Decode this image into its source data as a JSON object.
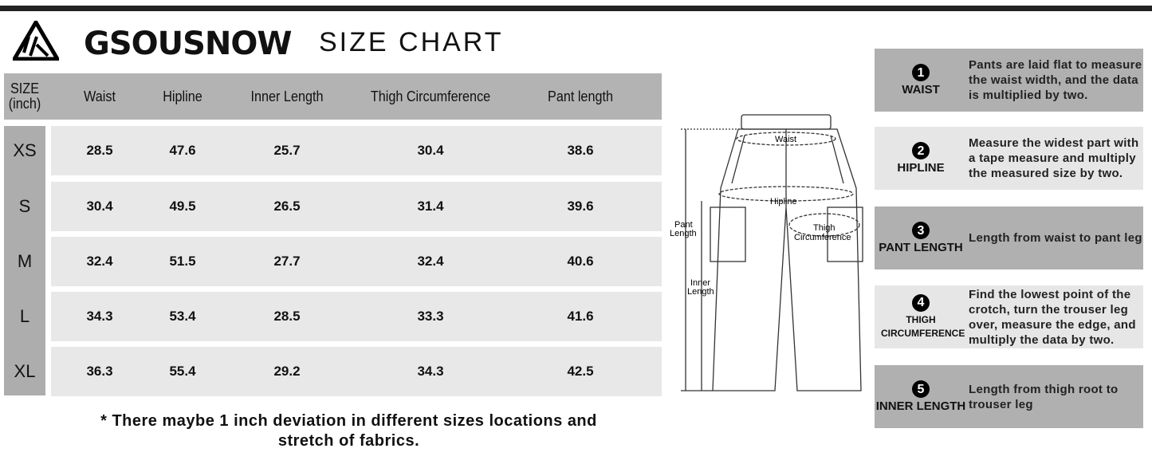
{
  "brand": {
    "name": "GSOUSNOW",
    "title": "SIZE CHART"
  },
  "table": {
    "headers": [
      "SIZE\n(inch)",
      "Waist",
      "Hipline",
      "Inner Length",
      "Thigh Circumference",
      "Pant length"
    ],
    "rows": [
      {
        "size": "XS",
        "values": [
          "28.5",
          "47.6",
          "25.7",
          "30.4",
          "38.6"
        ]
      },
      {
        "size": "S",
        "values": [
          "30.4",
          "49.5",
          "26.5",
          "31.4",
          "39.6"
        ]
      },
      {
        "size": "M",
        "values": [
          "32.4",
          "51.5",
          "27.7",
          "32.4",
          "40.6"
        ]
      },
      {
        "size": "L",
        "values": [
          "34.3",
          "53.4",
          "28.5",
          "33.3",
          "41.6"
        ]
      },
      {
        "size": "XL",
        "values": [
          "36.3",
          "55.4",
          "29.2",
          "34.3",
          "42.5"
        ]
      }
    ]
  },
  "note": "* There maybe 1 inch deviation in different sizes locations and stretch of fabrics.",
  "diagram": {
    "waist": "Waist",
    "hipline": "Hipline",
    "thigh": "Thigh",
    "circumference": "Circumference",
    "pant": "Pant",
    "pant2": "Length",
    "inner": "Inner",
    "inner2": "Length"
  },
  "guide": [
    {
      "num": "1",
      "label": "WAIST",
      "text": "Pants are laid flat to measure the waist width, and the data is multiplied by two."
    },
    {
      "num": "2",
      "label": "HIPLINE",
      "text": "Measure the widest part with a tape measure and multiply the measured size by two."
    },
    {
      "num": "3",
      "label": "PANT LENGTH",
      "text": "Length from waist to pant leg"
    },
    {
      "num": "4",
      "label": "THIGH CIRCUMFERENCE",
      "text": "Find the lowest point of the crotch, turn the trouser leg over, measure the edge, and multiply the data by two."
    },
    {
      "num": "5",
      "label": "INNER LENGTH",
      "text": "Length from thigh root to trouser leg"
    }
  ],
  "colors": {
    "header": "#b3b3b3",
    "row": "#e8e8e8",
    "dark_box": "#b0b0b0",
    "light_box": "#e6e6e6"
  }
}
